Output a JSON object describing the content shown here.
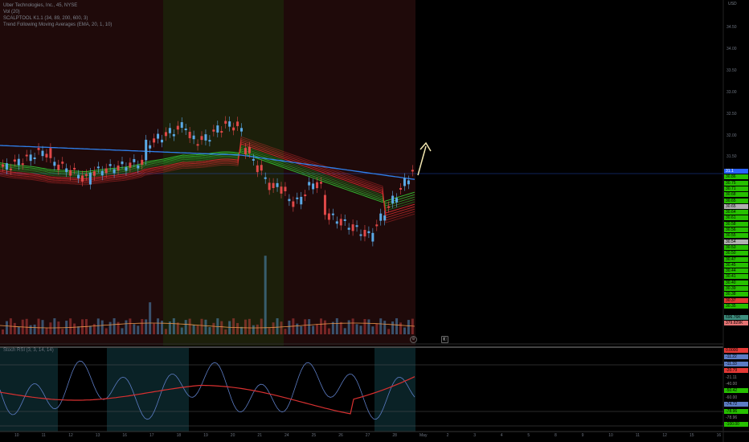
{
  "legend": {
    "title": "Uber Technologies, Inc., 45, NYSE",
    "volume": "Vol (20)",
    "scalptool": "SCALPTOOL K1.1 (34, 89, 200, 600, 3)",
    "trend": "Trend Following Moving Averages (EMA, 20, 1, 10)",
    "indicator": "Stoch RSI (3, 3, 14, 14)"
  },
  "currency": "USD",
  "price_ticks": [
    "34.50",
    "34.00",
    "33.50",
    "33.00",
    "32.50",
    "32.00",
    "31.50"
  ],
  "price_tags": [
    {
      "text": "31.1",
      "color": "#2962ff"
    },
    {
      "text": "30.86",
      "color": "#26c000"
    },
    {
      "text": "30.75",
      "color": "#26c000"
    },
    {
      "text": "30.71",
      "color": "#26c000"
    },
    {
      "text": "30.68",
      "color": "#26c000"
    },
    {
      "text": "30.65",
      "color": "#26c000"
    },
    {
      "text": "30.65",
      "color": "#b0b0b0"
    },
    {
      "text": "30.64",
      "color": "#26c000"
    },
    {
      "text": "30.61",
      "color": "#26c000"
    },
    {
      "text": "30.58",
      "color": "#26c000"
    },
    {
      "text": "30.56",
      "color": "#26c000"
    },
    {
      "text": "30.55",
      "color": "#26c000"
    },
    {
      "text": "30.54",
      "color": "#b0b0b0"
    },
    {
      "text": "30.53",
      "color": "#26c000"
    },
    {
      "text": "30.50",
      "color": "#26c000"
    },
    {
      "text": "30.47",
      "color": "#26c000"
    },
    {
      "text": "30.45",
      "color": "#26c000"
    },
    {
      "text": "30.44",
      "color": "#26c000"
    },
    {
      "text": "30.41",
      "color": "#26c000"
    },
    {
      "text": "30.40",
      "color": "#26c000"
    },
    {
      "text": "30.39",
      "color": "#26c000"
    },
    {
      "text": "30.38",
      "color": "#26c000"
    },
    {
      "text": "30.37",
      "color": "#e53935"
    },
    {
      "text": "30.35",
      "color": "#26c000"
    },
    {
      "text": "696.76K",
      "color": "#3f8f7f"
    },
    {
      "text": "379.829K",
      "color": "#e57373"
    }
  ],
  "ind_tags": [
    {
      "text": "0.0000",
      "color": "#e53935"
    },
    {
      "text": "-11.22",
      "color": "#5c7cc4"
    },
    {
      "text": "-11.33",
      "color": "#5c7cc4"
    },
    {
      "text": "-20.79",
      "color": "#e53935"
    },
    {
      "text": "-21.11",
      "color": "none"
    },
    {
      "text": "-40.00",
      "color": "none"
    },
    {
      "text": "-50.42",
      "color": "#26c000"
    },
    {
      "text": "-60.00",
      "color": "none"
    },
    {
      "text": "-74.72",
      "color": "#5c7cc4"
    },
    {
      "text": "-78.96",
      "color": "#26c000"
    },
    {
      "text": "-78.96",
      "color": "none"
    },
    {
      "text": "-100.00",
      "color": "#26c000"
    }
  ],
  "dates": [
    "10",
    "11",
    "12",
    "13",
    "16",
    "17",
    "18",
    "19",
    "20",
    "21",
    "24",
    "25",
    "26",
    "27",
    "28",
    "May",
    "2",
    "3",
    "4",
    "5",
    "8",
    "9",
    "10",
    "11",
    "12",
    "15",
    "16"
  ],
  "colors": {
    "bull": "#5aa9e6",
    "bear": "#e04848",
    "ma": "#2f80ed",
    "ema_green": "#33cc33",
    "ema_red": "#d83030"
  }
}
